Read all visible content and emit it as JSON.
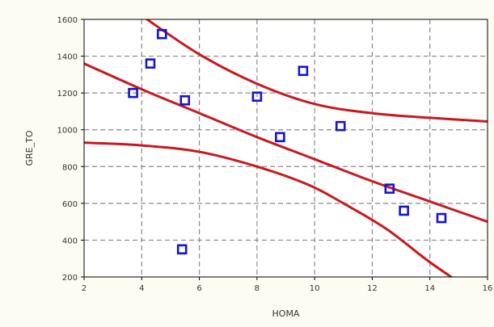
{
  "chart_data": {
    "type": "scatter",
    "title": "",
    "xlabel": "HOMA",
    "ylabel": "GRE_TO",
    "xlim": [
      2,
      16
    ],
    "ylim": [
      200,
      1600
    ],
    "x_ticks": [
      2,
      4,
      6,
      8,
      10,
      12,
      14,
      16
    ],
    "y_ticks": [
      200,
      400,
      600,
      800,
      1000,
      1200,
      1400,
      1600
    ],
    "x_tick_labels": [
      "2",
      "4",
      "6",
      "8",
      "10",
      "12",
      "14",
      "16"
    ],
    "y_tick_labels": [
      "200",
      "400",
      "600",
      "800",
      "1000",
      "1200",
      "1400",
      "1600"
    ],
    "grid": true,
    "colors": {
      "points": "#1515d0",
      "lines": "#c8191e",
      "grid": "#8a8a8a",
      "plot_bg": "#ffffff"
    },
    "points": [
      {
        "x": 3.7,
        "y": 1200
      },
      {
        "x": 4.3,
        "y": 1360
      },
      {
        "x": 4.7,
        "y": 1520
      },
      {
        "x": 5.4,
        "y": 350
      },
      {
        "x": 5.5,
        "y": 1160
      },
      {
        "x": 8.0,
        "y": 1180
      },
      {
        "x": 8.8,
        "y": 960
      },
      {
        "x": 9.6,
        "y": 1320
      },
      {
        "x": 10.9,
        "y": 1020
      },
      {
        "x": 12.6,
        "y": 680
      },
      {
        "x": 13.1,
        "y": 560
      },
      {
        "x": 14.4,
        "y": 520
      }
    ],
    "regression": {
      "fit": {
        "x": [
          2,
          4,
          6,
          8,
          10,
          12,
          14,
          16
        ],
        "y": [
          1360,
          1220,
          1090,
          960,
          840,
          720,
          610,
          500
        ]
      },
      "upper_band": {
        "x": [
          4,
          6,
          8,
          10,
          12,
          14,
          16
        ],
        "y": [
          1620,
          1410,
          1250,
          1140,
          1090,
          1065,
          1045
        ]
      },
      "lower_band": {
        "x": [
          2,
          4,
          6,
          8,
          9.8,
          11,
          12.5,
          14,
          15.5
        ],
        "y": [
          930,
          915,
          880,
          800,
          700,
          600,
          460,
          280,
          120
        ]
      }
    }
  }
}
